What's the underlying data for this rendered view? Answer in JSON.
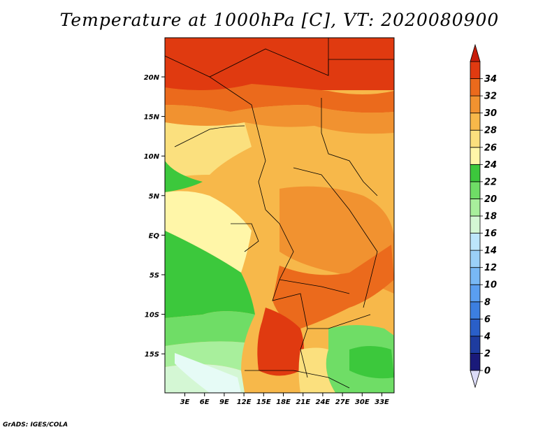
{
  "title": "Temperature at 1000hPa [C], VT: 2020080900",
  "footer": "GrADS: IGES/COLA",
  "map": {
    "lat_ticks": [
      "20N",
      "15N",
      "10N",
      "5N",
      "EQ",
      "5S",
      "10S",
      "15S"
    ],
    "lon_ticks": [
      "3E",
      "6E",
      "9E",
      "12E",
      "15E",
      "18E",
      "21E",
      "24E",
      "27E",
      "30E",
      "33E"
    ]
  },
  "colorbar": {
    "levels": [
      "0",
      "2",
      "4",
      "6",
      "8",
      "10",
      "12",
      "14",
      "16",
      "18",
      "20",
      "22",
      "24",
      "26",
      "28",
      "30",
      "32",
      "34"
    ],
    "colors": [
      "#1a1a7a",
      "#1e3ca0",
      "#2a5fc8",
      "#3c7fe0",
      "#5a9ef0",
      "#78b8f5",
      "#9bd0f8",
      "#bde6fb",
      "#d4f7d4",
      "#a8ef9c",
      "#6fdd66",
      "#3cc83c",
      "#fff6a8",
      "#fbe07e",
      "#f7b84a",
      "#f19230",
      "#eb6a1c",
      "#e03a10",
      "#c81e0c"
    ],
    "under_color": "#dcdcf8",
    "over_color": "#c81e0c"
  }
}
